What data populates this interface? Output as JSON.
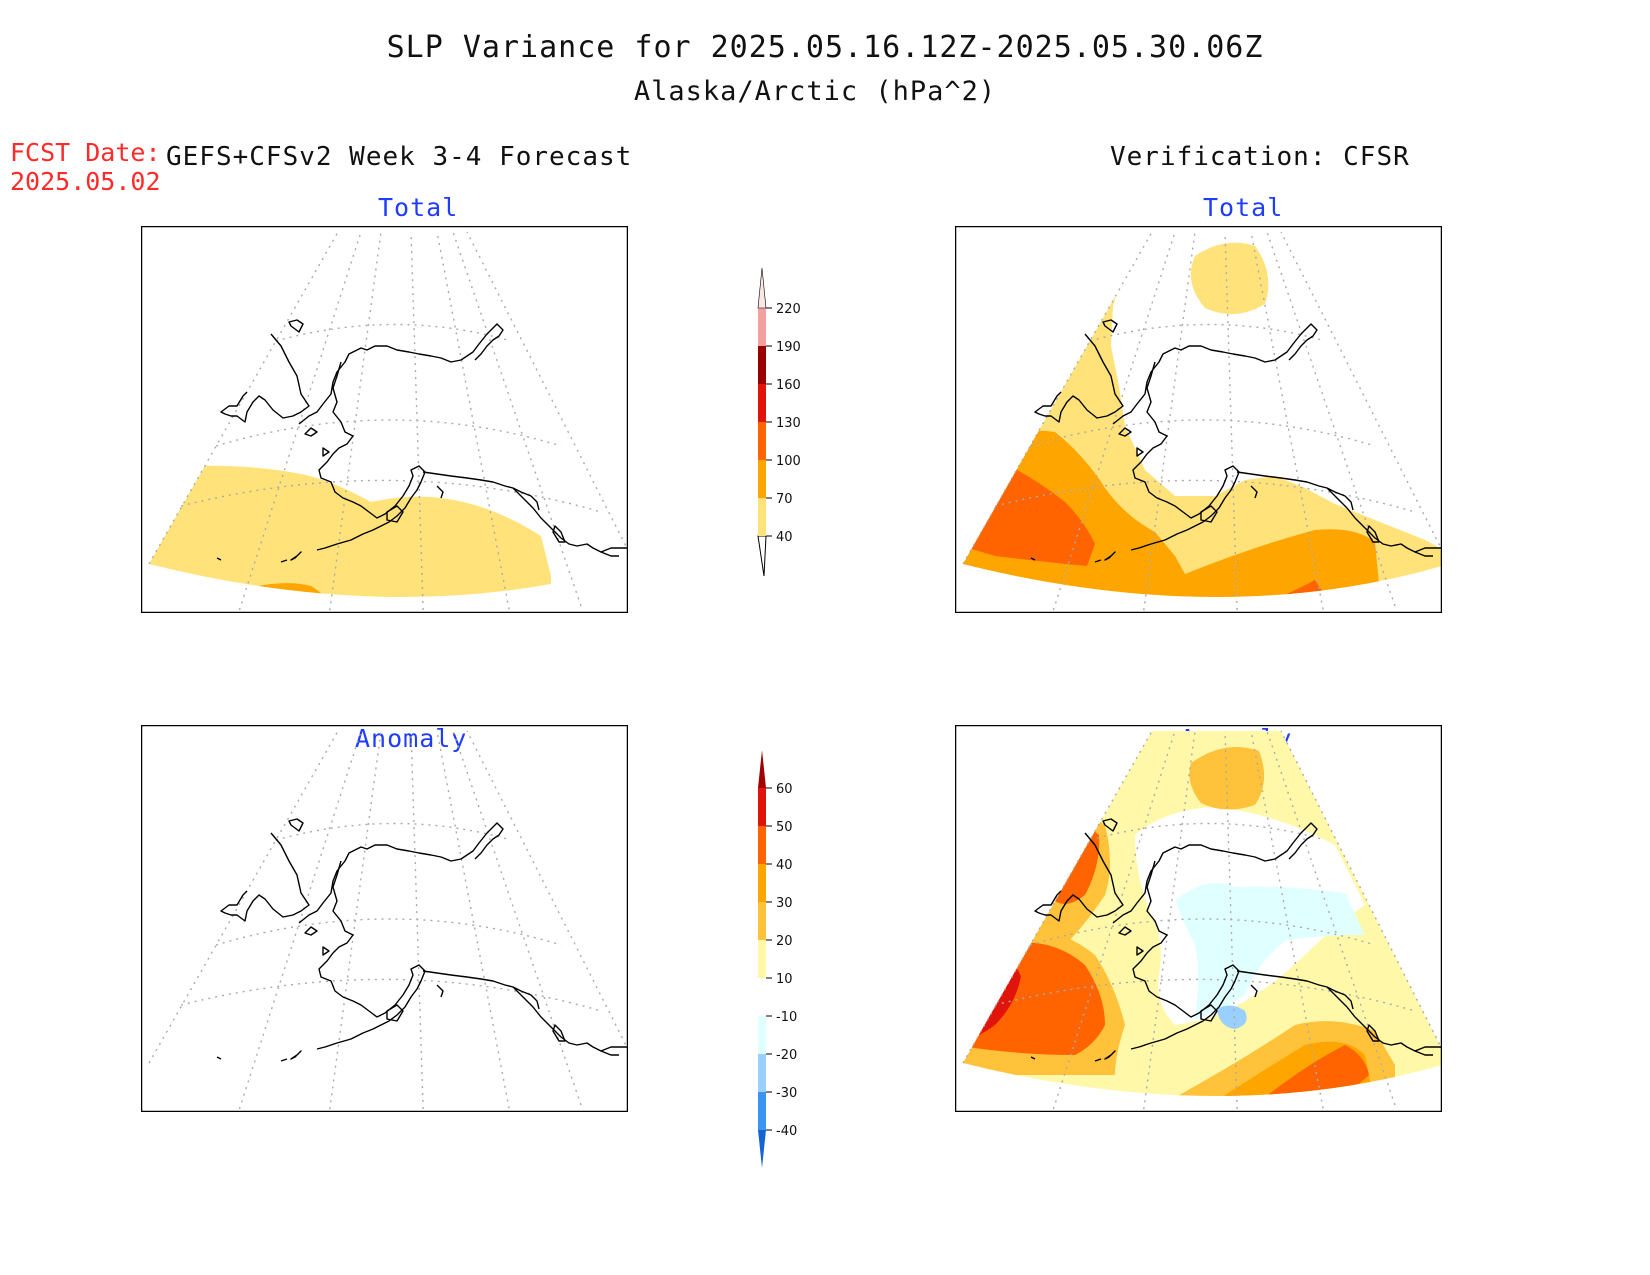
{
  "header": {
    "title": "SLP Variance for 2025.05.16.12Z-2025.05.30.06Z",
    "subtitle": "Alaska/Arctic (hPa^2)"
  },
  "forecast_info": {
    "date_label": "FCST Date:",
    "date_value": "2025.05.02"
  },
  "columns": {
    "left_title": "GEFS+CFSv2 Week 3-4 Forecast",
    "right_title": "Verification: CFSR"
  },
  "panels": {
    "forecast_total": {
      "label": "Total"
    },
    "verification_total": {
      "label": "Total"
    },
    "forecast_anomaly": {
      "label": "Anomaly"
    },
    "verification_anomaly": {
      "label": "Anomaly"
    }
  },
  "colorbars": {
    "total": {
      "ticks": [
        "40",
        "70",
        "100",
        "130",
        "160",
        "190",
        "220"
      ],
      "colors": [
        "#ffe27a",
        "#ffa500",
        "#ff6400",
        "#e0140a",
        "#9b0000",
        "#f4a0a0",
        "#ffe6e6"
      ]
    },
    "anomaly": {
      "ticks": [
        "60",
        "50",
        "40",
        "30",
        "20",
        "10",
        "-10",
        "-20",
        "-30",
        "-40"
      ],
      "colors_top_to_bottom": [
        "#a00000",
        "#e0140a",
        "#ff6400",
        "#ffa500",
        "#ffc23a",
        "#fff8a8",
        "#ffffff",
        "#e0ffff",
        "#9ad0ff",
        "#3a94f0",
        "#1464d2"
      ]
    }
  },
  "map_colors": {
    "coast": "#000000",
    "grid": "#aaaaaa",
    "frame": "#000000"
  }
}
